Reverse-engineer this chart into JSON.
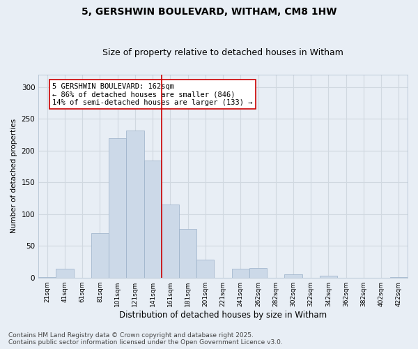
{
  "title": "5, GERSHWIN BOULEVARD, WITHAM, CM8 1HW",
  "subtitle": "Size of property relative to detached houses in Witham",
  "xlabel": "Distribution of detached houses by size in Witham",
  "ylabel": "Number of detached properties",
  "bar_color": "#ccd9e8",
  "bar_edgecolor": "#9ab0c8",
  "categories": [
    "21sqm",
    "41sqm",
    "61sqm",
    "81sqm",
    "101sqm",
    "121sqm",
    "141sqm",
    "161sqm",
    "181sqm",
    "201sqm",
    "221sqm",
    "241sqm",
    "262sqm",
    "282sqm",
    "302sqm",
    "322sqm",
    "342sqm",
    "362sqm",
    "382sqm",
    "402sqm",
    "422sqm"
  ],
  "values": [
    1,
    14,
    0,
    70,
    220,
    232,
    185,
    115,
    77,
    28,
    0,
    14,
    15,
    0,
    5,
    0,
    3,
    0,
    0,
    0,
    1
  ],
  "ylim": [
    0,
    320
  ],
  "yticks": [
    0,
    50,
    100,
    150,
    200,
    250,
    300
  ],
  "vline_index": 7,
  "vline_color": "#cc0000",
  "annotation_text": "5 GERSHWIN BOULEVARD: 162sqm\n← 86% of detached houses are smaller (846)\n14% of semi-detached houses are larger (133) →",
  "annotation_box_facecolor": "#ffffff",
  "annotation_box_edgecolor": "#cc0000",
  "footer_line1": "Contains HM Land Registry data © Crown copyright and database right 2025.",
  "footer_line2": "Contains public sector information licensed under the Open Government Licence v3.0.",
  "background_color": "#e8eef5",
  "grid_color": "#d0d8e0",
  "title_fontsize": 10,
  "subtitle_fontsize": 9,
  "annotation_fontsize": 7.5,
  "footer_fontsize": 6.5,
  "ylabel_fontsize": 7.5,
  "xlabel_fontsize": 8.5
}
